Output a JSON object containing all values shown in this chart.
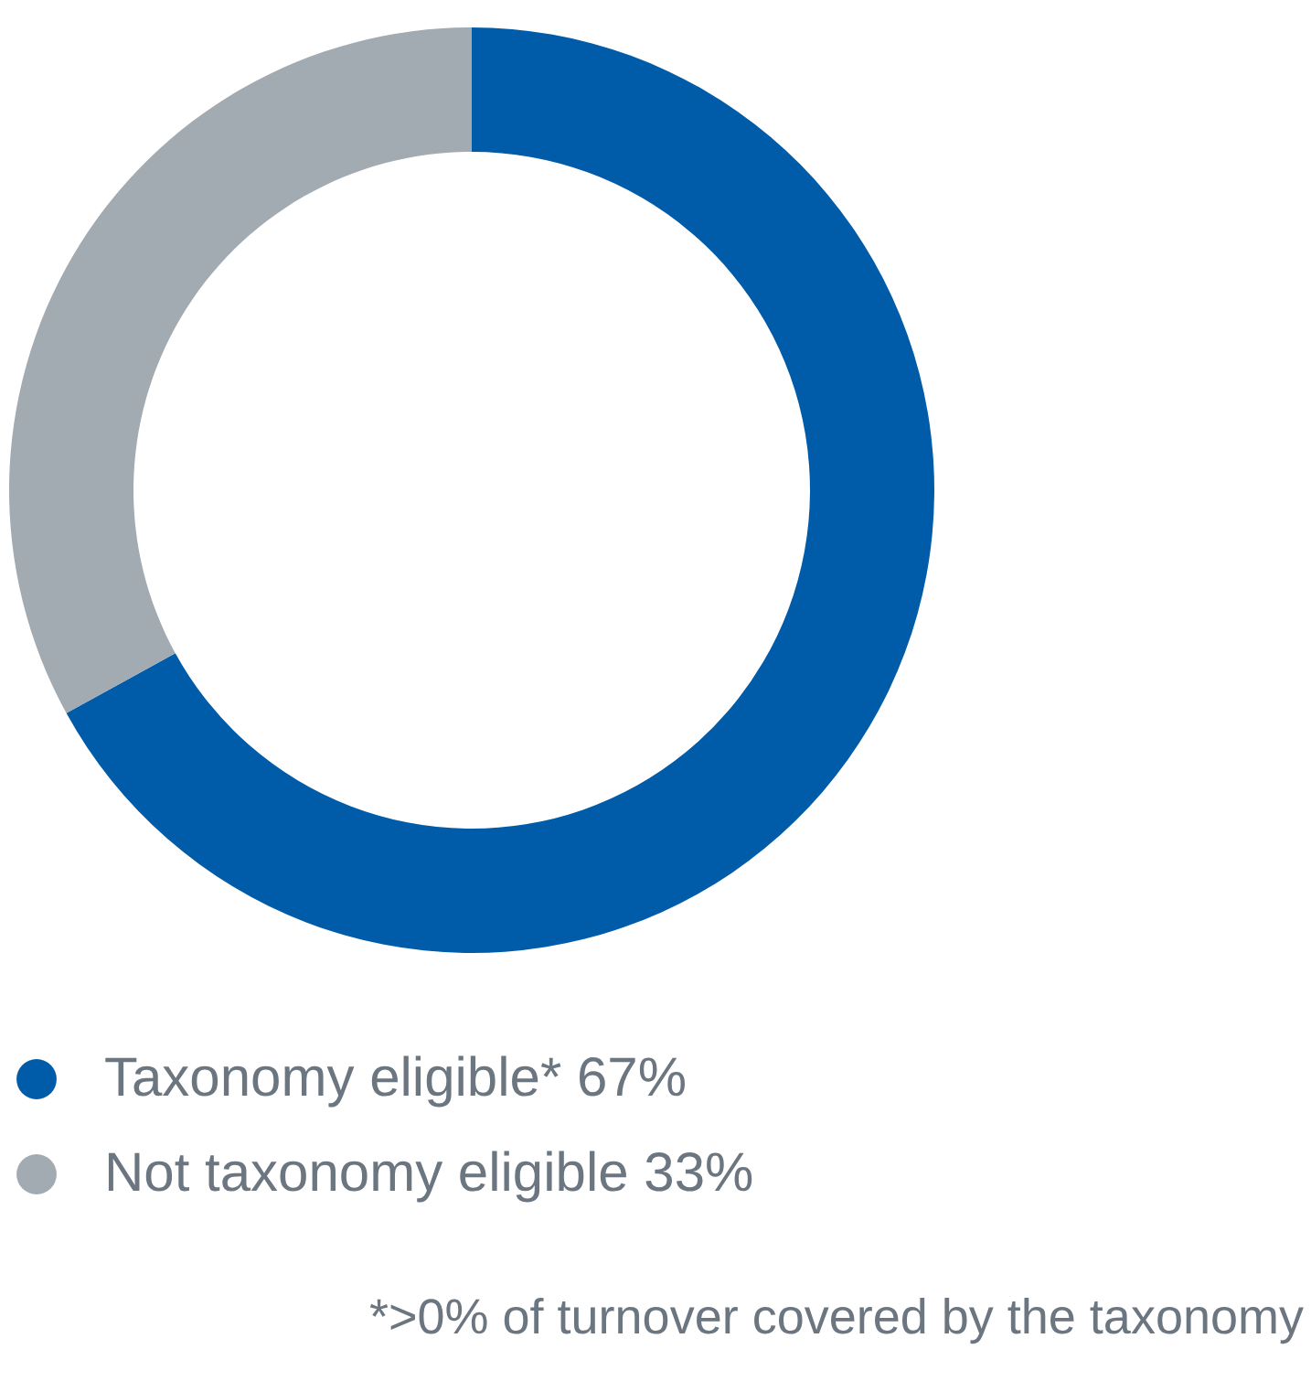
{
  "chart_data": {
    "type": "donut",
    "categories": [
      "Taxonomy eligible*",
      "Not taxonomy eligible"
    ],
    "values": [
      67,
      33
    ],
    "value_labels": [
      "67%",
      "33%"
    ],
    "colors": [
      "#005ca9",
      "#a2aab2"
    ],
    "legend": "bottom left",
    "annotations": [
      "*>0% of turnover covered by the taxonomy"
    ]
  }
}
